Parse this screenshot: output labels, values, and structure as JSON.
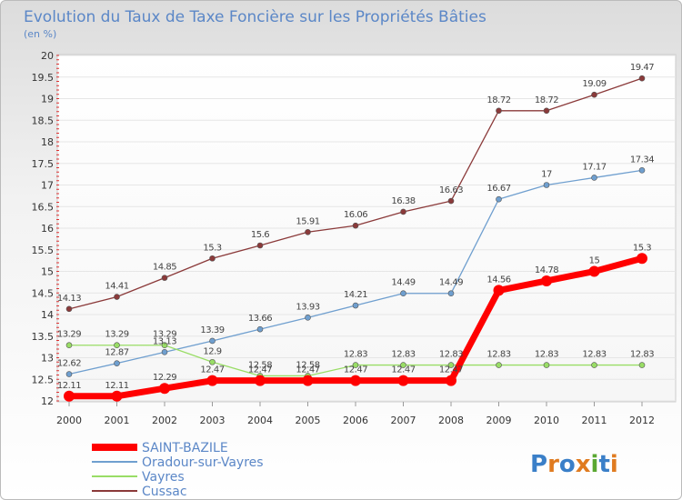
{
  "chart_data": {
    "type": "line",
    "title": "Evolution du Taux de Taxe Foncière sur les Propriétés Bâties",
    "subtitle": "(en %)",
    "x": [
      "2000",
      "2001",
      "2002",
      "2003",
      "2004",
      "2005",
      "2006",
      "2007",
      "2008",
      "2009",
      "2010",
      "2011",
      "2012"
    ],
    "ylim": [
      12,
      20
    ],
    "yticks": [
      "12",
      "12.5",
      "13",
      "13.5",
      "14",
      "14.5",
      "15",
      "15.5",
      "16",
      "16.5",
      "17",
      "17.5",
      "18",
      "18.5",
      "19",
      "19.5",
      "20"
    ],
    "grid": "horizontal",
    "legend_position": "bottom-left",
    "series": [
      {
        "name": "SAINT-BAZILE",
        "color": "#ff0000",
        "values": [
          12.11,
          12.11,
          12.29,
          12.47,
          12.47,
          12.47,
          12.47,
          12.47,
          12.47,
          14.56,
          14.78,
          15,
          15.3
        ],
        "labels": [
          "12.11",
          "12.11",
          "12.29",
          "12.47",
          "12.47",
          "12.47",
          "12.47",
          "12.47",
          "12.47",
          "14.56",
          "14.78",
          "15",
          "15.3"
        ]
      },
      {
        "name": "Oradour-sur-Vayres",
        "color": "#6f9fcf",
        "values": [
          12.62,
          12.87,
          13.13,
          13.39,
          13.66,
          13.93,
          14.21,
          14.49,
          14.49,
          16.67,
          17,
          17.17,
          17.34
        ],
        "labels": [
          "12.62",
          "12.87",
          "13.13",
          "13.39",
          "13.66",
          "13.93",
          "14.21",
          "14.49",
          "14.49",
          "16.67",
          "17",
          "17.17",
          "17.34"
        ]
      },
      {
        "name": "Vayres",
        "color": "#99dd66",
        "values": [
          13.29,
          13.29,
          13.29,
          12.9,
          12.58,
          12.58,
          12.83,
          12.83,
          12.83,
          12.83,
          12.83,
          12.83,
          12.83
        ],
        "labels": [
          "13.29",
          "13.29",
          "13.29",
          "12.9",
          "12.58",
          "12.58",
          "12.83",
          "12.83",
          "12.83",
          "12.83",
          "12.83",
          "12.83",
          "12.83"
        ]
      },
      {
        "name": "Cussac",
        "color": "#8b3a3a",
        "values": [
          14.13,
          14.41,
          14.85,
          15.3,
          15.6,
          15.91,
          16.06,
          16.38,
          16.63,
          18.72,
          18.72,
          19.09,
          19.47
        ],
        "labels": [
          "14.13",
          "14.41",
          "14.85",
          "15.3",
          "15.6",
          "15.91",
          "16.06",
          "16.38",
          "16.63",
          "18.72",
          "18.72",
          "19.09",
          "19.47"
        ]
      }
    ]
  },
  "brand": {
    "text": "Proxiti"
  }
}
